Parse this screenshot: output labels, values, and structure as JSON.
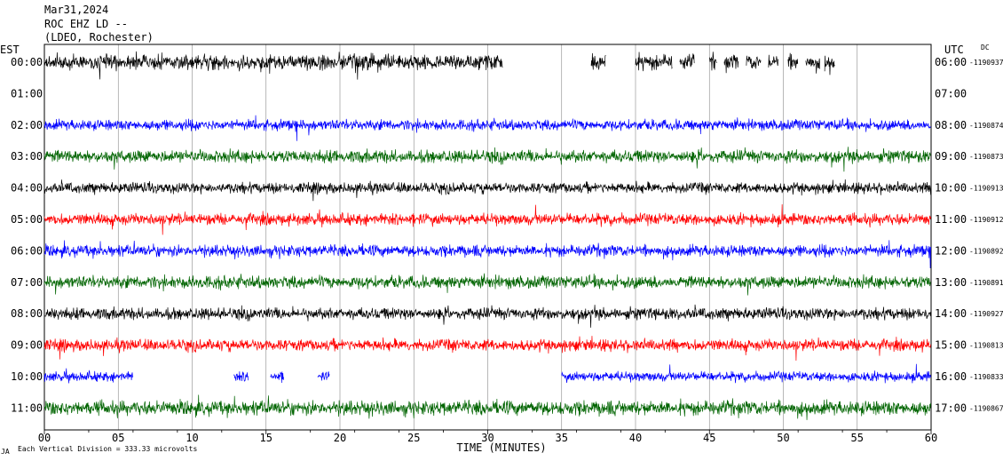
{
  "header": {
    "line1": "Mar31,2024",
    "line2": "ROC EHZ LD --",
    "line3": "(LDEO, Rochester)"
  },
  "left_axis_title": "EST",
  "right_axis_title": "UTC",
  "right_axis_corner": "DC",
  "footer": {
    "scale_text": "Each Vertical Division = 333.33 microvolts",
    "corner_mark": "JA"
  },
  "chart_data": {
    "type": "line",
    "xlabel": "TIME (MINUTES)",
    "xlim": [
      0,
      60
    ],
    "x_ticks": [
      "00",
      "05",
      "10",
      "15",
      "20",
      "25",
      "30",
      "35",
      "40",
      "45",
      "50",
      "55",
      "60"
    ],
    "grid": true,
    "series": [
      {
        "est": "00:00",
        "utc": "06:00",
        "dc": "-1190937",
        "color": "#000000",
        "amplitude": 0.8,
        "segments": [
          [
            0,
            31
          ],
          [
            37,
            38
          ],
          [
            40,
            42.5
          ],
          [
            43,
            44
          ],
          [
            45,
            45.5
          ],
          [
            46,
            47
          ],
          [
            47.5,
            48.5
          ],
          [
            49,
            49.7
          ],
          [
            50.3,
            51
          ],
          [
            51.5,
            52.5
          ],
          [
            52.8,
            53.5
          ]
        ]
      },
      {
        "est": "01:00",
        "utc": "07:00",
        "dc": "",
        "color": "#ff0000",
        "amplitude": 0,
        "segments": []
      },
      {
        "est": "02:00",
        "utc": "08:00",
        "dc": "-1190874",
        "color": "#0000ff",
        "amplitude": 0.55,
        "segments": [
          [
            0,
            60
          ]
        ]
      },
      {
        "est": "03:00",
        "utc": "09:00",
        "dc": "-1190873",
        "color": "#006400",
        "amplitude": 0.65,
        "segments": [
          [
            0,
            60
          ]
        ]
      },
      {
        "est": "04:00",
        "utc": "10:00",
        "dc": "-1190913",
        "color": "#000000",
        "amplitude": 0.55,
        "segments": [
          [
            0,
            60
          ]
        ]
      },
      {
        "est": "05:00",
        "utc": "11:00",
        "dc": "-1190912",
        "color": "#ff0000",
        "amplitude": 0.6,
        "segments": [
          [
            0,
            60
          ]
        ]
      },
      {
        "est": "06:00",
        "utc": "12:00",
        "dc": "-1190892",
        "color": "#0000ff",
        "amplitude": 0.6,
        "segments": [
          [
            0,
            60
          ]
        ]
      },
      {
        "est": "07:00",
        "utc": "13:00",
        "dc": "-1190891",
        "color": "#006400",
        "amplitude": 0.65,
        "segments": [
          [
            0,
            60
          ]
        ]
      },
      {
        "est": "08:00",
        "utc": "14:00",
        "dc": "-1190927",
        "color": "#000000",
        "amplitude": 0.6,
        "segments": [
          [
            0,
            60
          ]
        ]
      },
      {
        "est": "09:00",
        "utc": "15:00",
        "dc": "-1190813",
        "color": "#ff0000",
        "amplitude": 0.6,
        "segments": [
          [
            0,
            60
          ]
        ]
      },
      {
        "est": "10:00",
        "utc": "16:00",
        "dc": "-1190833",
        "color": "#0000ff",
        "amplitude": 0.5,
        "segments": [
          [
            0,
            6
          ],
          [
            12.8,
            13.8
          ],
          [
            15.3,
            16.2
          ],
          [
            18.5,
            19.3
          ],
          [
            35,
            60
          ]
        ]
      },
      {
        "est": "11:00",
        "utc": "17:00",
        "dc": "-1190867",
        "color": "#006400",
        "amplitude": 0.75,
        "segments": [
          [
            0,
            60
          ]
        ]
      }
    ]
  }
}
